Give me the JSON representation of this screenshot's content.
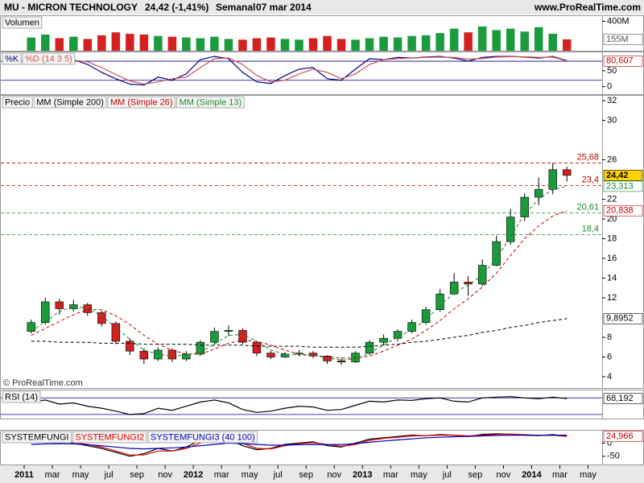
{
  "header": {
    "symbol": "MU - MICRON TECHNOLOGY",
    "quote": "24,42 (-1,41%)",
    "period": "Semanal",
    "date": "07 mar 2014",
    "site": "www.ProRealTime.com",
    "copyright": "© ProRealTime.com"
  },
  "chart_data": {
    "type": "stock",
    "x": [
      "2011-01",
      "2011-02",
      "2011-03",
      "2011-04",
      "2011-05",
      "2011-06",
      "2011-07",
      "2011-08",
      "2011-09",
      "2011-10",
      "2011-11",
      "2011-12",
      "2012-01",
      "2012-02",
      "2012-03",
      "2012-04",
      "2012-05",
      "2012-06",
      "2012-07",
      "2012-08",
      "2012-09",
      "2012-10",
      "2012-11",
      "2012-12",
      "2013-01",
      "2013-02",
      "2013-03",
      "2013-04",
      "2013-05",
      "2013-06",
      "2013-07",
      "2013-08",
      "2013-09",
      "2013-10",
      "2013-11",
      "2013-12",
      "2014-01",
      "2014-02",
      "2014-03"
    ],
    "xlim": [
      "2011-01",
      "2014-06"
    ],
    "xticks": [
      {
        "value": "2011-01",
        "label": "2011"
      },
      {
        "value": "2011-03",
        "label": "mar"
      },
      {
        "value": "2011-05",
        "label": "may"
      },
      {
        "value": "2011-07",
        "label": "jul"
      },
      {
        "value": "2011-09",
        "label": "sep"
      },
      {
        "value": "2011-11",
        "label": "nov"
      },
      {
        "value": "2012-01",
        "label": "2012"
      },
      {
        "value": "2012-03",
        "label": "mar"
      },
      {
        "value": "2012-05",
        "label": "may"
      },
      {
        "value": "2012-07",
        "label": "jul"
      },
      {
        "value": "2012-09",
        "label": "sep"
      },
      {
        "value": "2012-11",
        "label": "nov"
      },
      {
        "value": "2013-01",
        "label": "2013"
      },
      {
        "value": "2013-03",
        "label": "mar"
      },
      {
        "value": "2013-05",
        "label": "may"
      },
      {
        "value": "2013-07",
        "label": "jul"
      },
      {
        "value": "2013-09",
        "label": "sep"
      },
      {
        "value": "2013-11",
        "label": "nov"
      },
      {
        "value": "2014-01",
        "label": "2014"
      },
      {
        "value": "2014-03",
        "label": "mar"
      },
      {
        "value": "2014-05",
        "label": "may"
      }
    ],
    "panels": [
      {
        "type": "volume",
        "name": "Volumen",
        "ylim": [
          0,
          482000000
        ],
        "yticks": [
          {
            "value": 400000000,
            "label": "400M"
          }
        ],
        "markers": [
          {
            "value": 155000000,
            "label": "155M",
            "color": "#555555"
          }
        ],
        "up_color": "#1a9b3c",
        "down_color": "#d42020",
        "values": [
          180000000,
          220000000,
          170000000,
          190000000,
          160000000,
          210000000,
          250000000,
          230000000,
          220000000,
          200000000,
          190000000,
          180000000,
          170000000,
          190000000,
          160000000,
          150000000,
          170000000,
          180000000,
          160000000,
          150000000,
          170000000,
          200000000,
          160000000,
          150000000,
          170000000,
          190000000,
          180000000,
          200000000,
          210000000,
          240000000,
          300000000,
          250000000,
          330000000,
          280000000,
          300000000,
          260000000,
          320000000,
          230000000,
          155000000
        ]
      },
      {
        "type": "lines",
        "ylim": [
          -23.7,
          110.5
        ],
        "yticks": [
          0,
          50
        ],
        "hlines": [
          {
            "value": 20,
            "color": "#000080"
          },
          {
            "value": 80,
            "color": "#000080"
          }
        ],
        "markers": [
          {
            "value": 80.607,
            "label": "80,607",
            "color": "#c00000"
          }
        ],
        "series": [
          {
            "name": "%K",
            "color": "#000080",
            "values": [
              85,
              92,
              80,
              85,
              70,
              45,
              25,
              8,
              5,
              30,
              20,
              40,
              85,
              95,
              88,
              45,
              15,
              10,
              35,
              55,
              60,
              25,
              20,
              55,
              88,
              85,
              92,
              90,
              93,
              95,
              90,
              80,
              92,
              95,
              95,
              93,
              90,
              95,
              82
            ]
          },
          {
            "name": "%D (14 3 5)",
            "color": "#d05050",
            "values": [
              80,
              88,
              86,
              83,
              78,
              60,
              38,
              18,
              8,
              15,
              25,
              30,
              60,
              88,
              90,
              70,
              35,
              15,
              20,
              40,
              55,
              45,
              25,
              40,
              70,
              85,
              88,
              90,
              92,
              93,
              92,
              87,
              88,
              93,
              94,
              94,
              92,
              93,
              80.607
            ]
          }
        ]
      },
      {
        "type": "candlestick",
        "name": "Precio",
        "ylim": [
          2.86,
          32.57
        ],
        "yticks": [
          4,
          6,
          8,
          12,
          14,
          16,
          18,
          20,
          22,
          26,
          30,
          32
        ],
        "up_color": "#1a9b3c",
        "down_color": "#d42020",
        "open": [
          8.6,
          9.5,
          11.6,
          10.9,
          11.3,
          10.5,
          9.4,
          7.6,
          6.6,
          5.8,
          6.7,
          5.8,
          6.3,
          7.5,
          8.6,
          8.7,
          7.5,
          6.4,
          6.0,
          6.3,
          6.4,
          6.1,
          5.6,
          5.5,
          6.4,
          7.5,
          7.9,
          8.6,
          9.5,
          10.8,
          12.4,
          13.6,
          13.4,
          15.3,
          17.7,
          20.2,
          22.2,
          23.0,
          25.0
        ],
        "high": [
          9.8,
          12.0,
          11.9,
          11.8,
          11.5,
          10.7,
          9.6,
          7.9,
          6.9,
          7.0,
          6.9,
          6.6,
          7.7,
          9.0,
          9.2,
          8.9,
          7.6,
          6.6,
          6.5,
          6.7,
          6.6,
          6.2,
          5.9,
          6.6,
          7.7,
          8.3,
          8.8,
          9.8,
          11.1,
          12.9,
          14.5,
          14.2,
          15.9,
          18.3,
          21.0,
          22.6,
          24.2,
          25.68,
          25.3
        ],
        "low": [
          8.4,
          9.3,
          10.3,
          10.6,
          10.2,
          9.1,
          7.3,
          6.2,
          5.3,
          5.6,
          5.5,
          5.6,
          6.1,
          7.3,
          8.1,
          7.3,
          6.1,
          5.8,
          5.9,
          6.1,
          5.9,
          5.3,
          5.2,
          5.4,
          6.2,
          7.2,
          7.6,
          8.4,
          9.3,
          10.6,
          12.3,
          12.2,
          13.2,
          15.2,
          17.4,
          19.8,
          21.4,
          22.5,
          23.8
        ],
        "close": [
          9.5,
          11.6,
          10.9,
          11.3,
          10.5,
          9.4,
          7.6,
          6.6,
          5.8,
          6.7,
          5.8,
          6.3,
          7.5,
          8.6,
          8.7,
          7.5,
          6.4,
          6.0,
          6.3,
          6.4,
          6.1,
          5.6,
          5.5,
          6.4,
          7.5,
          7.9,
          8.6,
          9.5,
          10.8,
          12.4,
          13.6,
          13.4,
          15.3,
          17.7,
          20.2,
          22.2,
          23.0,
          25.0,
          24.42
        ],
        "hlines": [
          {
            "value": 25.68,
            "label": "25,68",
            "color": "#c00000"
          },
          {
            "value": 23.4,
            "label": "23,4",
            "color": "#c00000"
          },
          {
            "value": 20.61,
            "label": "20,61",
            "color": "#1a8a2a"
          },
          {
            "value": 18.4,
            "label": "18,4",
            "color": "#1a8a2a"
          }
        ],
        "markers": [
          {
            "value": 24.42,
            "label": "24,42",
            "color": "#000000",
            "fill": "#ffd400"
          },
          {
            "value": 23.313,
            "label": "23,313",
            "color": "#1a8a2a"
          },
          {
            "value": 20.838,
            "label": "20,838",
            "color": "#c00000"
          },
          {
            "value": 9.8952,
            "label": "9,8952",
            "color": "#000000"
          }
        ],
        "series": [
          {
            "name": "MM (Simple 200)",
            "color": "#000000",
            "values": [
              7.6,
              7.6,
              7.5,
              7.5,
              7.5,
              7.4,
              7.4,
              7.4,
              7.3,
              7.3,
              7.3,
              7.3,
              7.2,
              7.2,
              7.2,
              7.2,
              7.1,
              7.1,
              7.1,
              7.1,
              7.0,
              7.0,
              7.0,
              7.0,
              7.1,
              7.2,
              7.3,
              7.5,
              7.6,
              7.8,
              8.0,
              8.2,
              8.5,
              8.7,
              9.0,
              9.2,
              9.5,
              9.7,
              9.8952
            ]
          },
          {
            "name": "MM (Simple 26)",
            "color": "#c00000",
            "values": [
              8.2,
              8.9,
              9.6,
              10.3,
              10.8,
              10.8,
              10.2,
              9.3,
              8.2,
              7.3,
              6.7,
              6.3,
              6.3,
              6.8,
              7.4,
              7.7,
              7.6,
              7.2,
              6.7,
              6.3,
              6.2,
              6.0,
              5.9,
              5.9,
              6.1,
              6.6,
              7.2,
              7.8,
              8.7,
              9.7,
              10.9,
              11.9,
              13.1,
              14.5,
              16.3,
              18.0,
              19.3,
              20.3,
              20.838
            ]
          },
          {
            "name": "MM (Simple 13)",
            "color": "#1a8a2a",
            "values": [
              8.6,
              9.6,
              10.6,
              11.2,
              10.9,
              10.2,
              9.0,
              7.8,
              6.7,
              6.3,
              6.1,
              6.2,
              6.5,
              7.3,
              8.2,
              8.3,
              7.6,
              6.7,
              6.3,
              6.2,
              6.2,
              5.9,
              5.7,
              5.8,
              6.4,
              7.2,
              8.0,
              8.8,
              9.8,
              11.2,
              12.5,
              13.3,
              14.3,
              16.0,
              18.2,
              20.5,
              22.0,
              23.0,
              23.313
            ]
          }
        ]
      },
      {
        "type": "lines",
        "ylim": [
          20,
          90
        ],
        "yticks": [],
        "hlines": [
          {
            "value": 30,
            "color": "#000080"
          },
          {
            "value": 70,
            "color": "#000080"
          }
        ],
        "markers": [
          {
            "value": 68.192,
            "label": "68,192",
            "color": "#000000"
          }
        ],
        "series": [
          {
            "name": "RSI (14)",
            "color": "#000000",
            "values": [
              60,
              65,
              55,
              58,
              50,
              45,
              38,
              30,
              32,
              45,
              40,
              50,
              60,
              65,
              58,
              42,
              35,
              38,
              45,
              50,
              48,
              40,
              42,
              52,
              62,
              60,
              65,
              64,
              68,
              70,
              62,
              60,
              70,
              72,
              73,
              70,
              68,
              72,
              68.192
            ]
          }
        ]
      },
      {
        "type": "lines",
        "ylim": [
          -81,
          50
        ],
        "yticks": [
          0,
          -50
        ],
        "markers": [
          {
            "value": 24.966,
            "label": "24,966",
            "color": "#c00000"
          }
        ],
        "series": [
          {
            "name": "SYSTEMFUNGI",
            "color": "#000000",
            "values": [
              10,
              20,
              5,
              0,
              -10,
              -20,
              -35,
              -50,
              -40,
              -20,
              -30,
              -15,
              10,
              20,
              15,
              -10,
              -25,
              -20,
              -5,
              0,
              5,
              -10,
              -15,
              0,
              15,
              20,
              25,
              30,
              28,
              32,
              30,
              25,
              33,
              35,
              34,
              30,
              28,
              32,
              26
            ]
          },
          {
            "name": "SYSTEMFUNGI2",
            "color": "#e00000",
            "values": [
              15,
              18,
              10,
              2,
              -5,
              -15,
              -30,
              -45,
              -45,
              -30,
              -30,
              -20,
              0,
              15,
              18,
              0,
              -20,
              -22,
              -10,
              -2,
              2,
              -5,
              -12,
              -5,
              10,
              18,
              22,
              27,
              28,
              30,
              30,
              27,
              30,
              33,
              34,
              32,
              29,
              30,
              24.966
            ]
          },
          {
            "name": "SYSTEMFUNGI3 (40 100)",
            "color": "#0000c0",
            "values": [
              -5,
              -3,
              -2,
              -3,
              -6,
              -10,
              -15,
              -20,
              -22,
              -20,
              -18,
              -15,
              -10,
              -5,
              0,
              -2,
              -5,
              -8,
              -8,
              -6,
              -5,
              -6,
              -5,
              -2,
              3,
              8,
              12,
              16,
              20,
              22,
              24,
              25,
              27,
              29,
              30,
              30,
              30,
              30,
              30
            ]
          }
        ]
      }
    ]
  }
}
